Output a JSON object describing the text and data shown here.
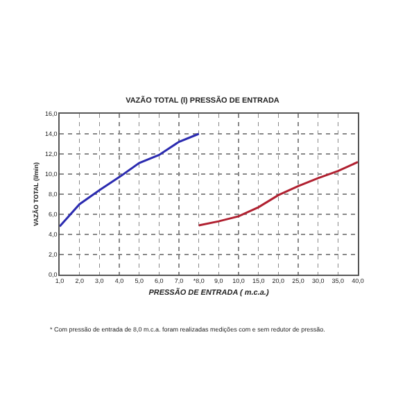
{
  "chart_data": {
    "type": "line",
    "title": "VAZÃO TOTAL (l) PRESSÃO DE ENTRADA",
    "xlabel": "PRESSÃO DE ENTRADA ( m.c.a.)",
    "ylabel": "VAZÃO TOTAL (l/min)",
    "categories": [
      "1,0",
      "2,0",
      "3,0",
      "4,0",
      "5,0",
      "6,0",
      "7,0",
      "*8,0",
      "9,0",
      "10,0",
      "15,0",
      "20,0",
      "25,0",
      "30,0",
      "35,0",
      "40,0"
    ],
    "series": [
      {
        "color": "#2b2bb0",
        "values": [
          4.8,
          7.0,
          8.4,
          9.7,
          11.1,
          11.9,
          13.2,
          14.0,
          null,
          null,
          null,
          null,
          null,
          null,
          null,
          null
        ]
      },
      {
        "color": "#b02030",
        "values": [
          null,
          null,
          null,
          null,
          null,
          null,
          null,
          4.9,
          5.3,
          5.8,
          6.7,
          7.9,
          8.8,
          9.6,
          10.3,
          11.2
        ]
      }
    ],
    "ylim": [
      0,
      16
    ],
    "yticks": [
      {
        "value": 0,
        "label": "0,0"
      },
      {
        "value": 2,
        "label": "2,0"
      },
      {
        "value": 4,
        "label": "4,0"
      },
      {
        "value": 6,
        "label": "6,0"
      },
      {
        "value": 8,
        "label": "8,0"
      },
      {
        "value": 10,
        "label": "10,0"
      },
      {
        "value": 12,
        "label": "12,0"
      },
      {
        "value": 14,
        "label": "14,0"
      },
      {
        "value": 16,
        "label": "16,0"
      }
    ],
    "grid": true,
    "marker": "none",
    "line_style": "solid",
    "annotations": [
      "* Com pressão de entrada de 8,0 m.c.a. foram realizadas medições com e sem redutor de pressão."
    ]
  }
}
